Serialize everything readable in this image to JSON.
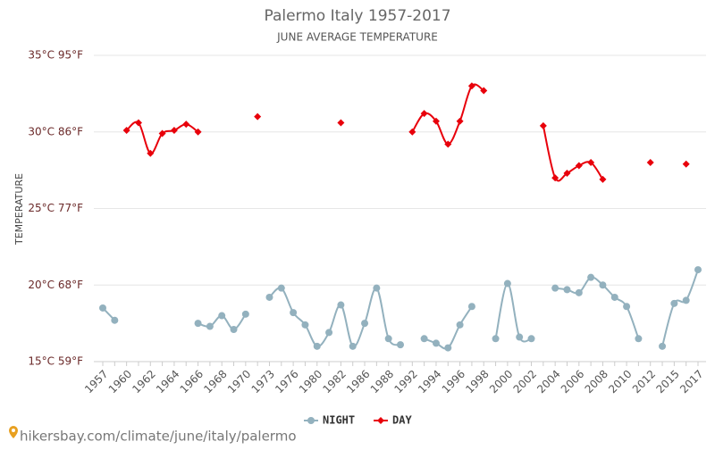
{
  "chart_data": {
    "type": "line",
    "title": "Palermo Italy 1957-2017",
    "subtitle": "JUNE AVERAGE TEMPERATURE",
    "y_label": "TEMPERATURE",
    "source": "hikersbay.com/climate/june/italy/palermo",
    "categories": [
      "1957",
      null,
      "1960",
      null,
      "1962",
      null,
      "1964",
      null,
      "1966",
      null,
      "1968",
      null,
      "1970",
      null,
      "1973",
      null,
      "1976",
      null,
      "1980",
      null,
      "1982",
      null,
      "1986",
      null,
      "1988",
      null,
      "1992",
      null,
      "1994",
      null,
      "1996",
      null,
      "1998",
      null,
      "2000",
      null,
      "2002",
      null,
      "2004",
      null,
      "2006",
      null,
      "2008",
      null,
      "2010",
      null,
      "2012",
      null,
      "2015",
      null,
      "2017"
    ],
    "ylim": [
      15,
      35
    ],
    "yticks": [
      {
        "value": 15,
        "label": "15°C 59°F"
      },
      {
        "value": 20,
        "label": "20°C 68°F"
      },
      {
        "value": 25,
        "label": "25°C 77°F"
      },
      {
        "value": 30,
        "label": "30°C 86°F"
      },
      {
        "value": 35,
        "label": "35°C 95°F"
      }
    ],
    "grid": true,
    "legend": "bottom",
    "series": [
      {
        "name": "NIGHT",
        "color": "#93b1be",
        "marker": "circle",
        "values": [
          18.5,
          17.7,
          null,
          null,
          null,
          null,
          null,
          null,
          17.5,
          17.3,
          18.0,
          17.1,
          18.1,
          null,
          19.2,
          19.8,
          18.2,
          17.4,
          16.0,
          16.9,
          18.7,
          16.0,
          17.5,
          19.8,
          16.5,
          16.1,
          null,
          16.5,
          16.2,
          15.9,
          17.4,
          18.6,
          null,
          16.5,
          20.1,
          16.6,
          16.5,
          null,
          19.8,
          19.7,
          19.5,
          20.5,
          20.0,
          19.2,
          18.6,
          16.5,
          null,
          16.0,
          18.8,
          19.0,
          21.0
        ]
      },
      {
        "name": "DAY",
        "color": "#e8000b",
        "marker": "diamond",
        "values": [
          null,
          null,
          30.1,
          30.6,
          28.6,
          29.9,
          30.1,
          30.5,
          30.0,
          null,
          null,
          null,
          null,
          31.0,
          null,
          null,
          null,
          null,
          null,
          null,
          30.6,
          null,
          null,
          null,
          null,
          null,
          30.0,
          31.2,
          30.7,
          29.2,
          30.7,
          33.0,
          32.7,
          null,
          null,
          null,
          null,
          30.4,
          27.0,
          27.3,
          27.8,
          28.0,
          26.9,
          null,
          null,
          null,
          28.0,
          null,
          null,
          27.9,
          null
        ]
      }
    ]
  }
}
